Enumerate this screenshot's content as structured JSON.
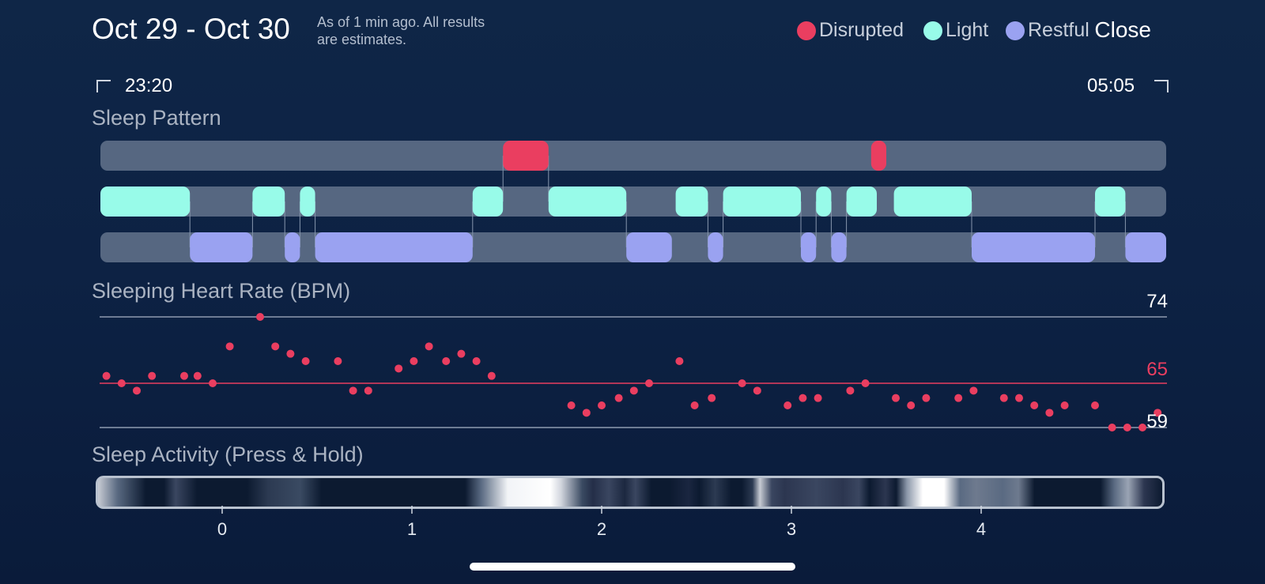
{
  "header": {
    "title": "Oct 29 - Oct 30",
    "subtitle_line1": "As of 1 min ago. All results",
    "subtitle_line2": "are estimates.",
    "close_label": "Close"
  },
  "legend": [
    {
      "label": "Disrupted",
      "color": "#ea3e60"
    },
    {
      "label": "Light",
      "color": "#98fbe9"
    },
    {
      "label": "Restful",
      "color": "#9aa2f1"
    }
  ],
  "time_range": {
    "start": "23:20",
    "end": "05:05"
  },
  "sleep_pattern": {
    "title": "Sleep Pattern",
    "track_color": "#566781",
    "rows": [
      {
        "stage": "Disrupted",
        "color": "#ea3e60",
        "segments": [
          [
            1.48,
            1.72
          ],
          [
            3.42,
            3.5
          ]
        ]
      },
      {
        "stage": "Light",
        "color": "#98fbe9",
        "segments": [
          [
            -0.66,
            -0.17
          ],
          [
            0.16,
            0.33
          ],
          [
            0.41,
            0.49
          ],
          [
            1.32,
            1.48
          ],
          [
            1.72,
            2.13
          ],
          [
            2.39,
            2.56
          ],
          [
            2.64,
            3.05
          ],
          [
            3.13,
            3.21
          ],
          [
            3.29,
            3.45
          ],
          [
            3.54,
            3.95
          ],
          [
            4.6,
            4.76
          ]
        ]
      },
      {
        "stage": "Restful",
        "color": "#9aa2f1",
        "segments": [
          [
            -0.17,
            0.16
          ],
          [
            0.33,
            0.41
          ],
          [
            0.49,
            1.32
          ],
          [
            2.13,
            2.37
          ],
          [
            2.56,
            2.64
          ],
          [
            3.05,
            3.13
          ],
          [
            3.21,
            3.29
          ],
          [
            3.95,
            4.6
          ],
          [
            4.76,
            5.0
          ]
        ]
      }
    ]
  },
  "heart_rate": {
    "title": "Sleeping Heart Rate (BPM)",
    "max": 74,
    "avg": 65,
    "min": 59,
    "color": "#ea3e60",
    "points": [
      [
        -0.61,
        66
      ],
      [
        -0.53,
        65
      ],
      [
        -0.45,
        64
      ],
      [
        -0.37,
        66
      ],
      [
        -0.2,
        66
      ],
      [
        -0.13,
        66
      ],
      [
        -0.05,
        65
      ],
      [
        0.04,
        70
      ],
      [
        0.2,
        74
      ],
      [
        0.28,
        70
      ],
      [
        0.36,
        69
      ],
      [
        0.44,
        68
      ],
      [
        0.61,
        68
      ],
      [
        0.69,
        64
      ],
      [
        0.77,
        64
      ],
      [
        0.93,
        67
      ],
      [
        1.01,
        68
      ],
      [
        1.09,
        70
      ],
      [
        1.18,
        68
      ],
      [
        1.26,
        69
      ],
      [
        1.34,
        68
      ],
      [
        1.42,
        66
      ],
      [
        1.84,
        62
      ],
      [
        1.92,
        61
      ],
      [
        2.0,
        62
      ],
      [
        2.09,
        63
      ],
      [
        2.17,
        64
      ],
      [
        2.25,
        65
      ],
      [
        2.41,
        68
      ],
      [
        2.49,
        62
      ],
      [
        2.58,
        63
      ],
      [
        2.74,
        65
      ],
      [
        2.82,
        64
      ],
      [
        2.98,
        62
      ],
      [
        3.06,
        63
      ],
      [
        3.14,
        63
      ],
      [
        3.31,
        64
      ],
      [
        3.39,
        65
      ],
      [
        3.55,
        63
      ],
      [
        3.63,
        62
      ],
      [
        3.71,
        63
      ],
      [
        3.88,
        63
      ],
      [
        3.96,
        64
      ],
      [
        4.12,
        63
      ],
      [
        4.2,
        63
      ],
      [
        4.28,
        62
      ],
      [
        4.36,
        61
      ],
      [
        4.44,
        62
      ],
      [
        4.6,
        62
      ],
      [
        4.69,
        59
      ],
      [
        4.77,
        59
      ],
      [
        4.85,
        59
      ],
      [
        4.93,
        61
      ]
    ]
  },
  "sleep_activity": {
    "title": "Sleep Activity (Press & Hold)",
    "axis_ticks": [
      "0",
      "1",
      "2",
      "3",
      "4"
    ]
  }
}
